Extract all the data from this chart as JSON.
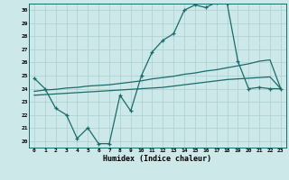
{
  "xlabel": "Humidex (Indice chaleur)",
  "bg_color": "#cce8e8",
  "grid_color": "#aacfcf",
  "line_color": "#1a6b6b",
  "xlim": [
    -0.5,
    23.5
  ],
  "ylim": [
    19.5,
    30.5
  ],
  "xticks": [
    0,
    1,
    2,
    3,
    4,
    5,
    6,
    7,
    8,
    9,
    10,
    11,
    12,
    13,
    14,
    15,
    16,
    17,
    18,
    19,
    20,
    21,
    22,
    23
  ],
  "yticks": [
    20,
    21,
    22,
    23,
    24,
    25,
    26,
    27,
    28,
    29,
    30
  ],
  "lines": [
    {
      "x": [
        0,
        1,
        2,
        3,
        4,
        5,
        6,
        7,
        8,
        9,
        10,
        11,
        12,
        13,
        14,
        15,
        16,
        17,
        18,
        19,
        20,
        21,
        22,
        23
      ],
      "y": [
        24.8,
        24.0,
        22.5,
        22.0,
        20.2,
        21.0,
        19.8,
        19.8,
        23.5,
        22.3,
        25.0,
        26.8,
        27.7,
        28.2,
        30.0,
        30.4,
        30.2,
        30.6,
        30.5,
        26.1,
        24.0,
        24.1,
        24.0,
        24.0
      ],
      "marker": "+",
      "markersize": 3.5
    },
    {
      "x": [
        0,
        1,
        2,
        3,
        4,
        5,
        6,
        7,
        8,
        9,
        10,
        11,
        12,
        13,
        14,
        15,
        16,
        17,
        18,
        19,
        20,
        21,
        22,
        23
      ],
      "y": [
        23.8,
        23.9,
        23.95,
        24.05,
        24.1,
        24.2,
        24.25,
        24.3,
        24.4,
        24.5,
        24.6,
        24.75,
        24.85,
        24.95,
        25.1,
        25.2,
        25.35,
        25.45,
        25.6,
        25.75,
        25.9,
        26.1,
        26.2,
        24.0
      ],
      "marker": null,
      "markersize": 0
    },
    {
      "x": [
        0,
        1,
        2,
        3,
        4,
        5,
        6,
        7,
        8,
        9,
        10,
        11,
        12,
        13,
        14,
        15,
        16,
        17,
        18,
        19,
        20,
        21,
        22,
        23
      ],
      "y": [
        23.5,
        23.55,
        23.6,
        23.65,
        23.7,
        23.75,
        23.8,
        23.85,
        23.9,
        23.95,
        24.0,
        24.05,
        24.1,
        24.2,
        24.3,
        24.4,
        24.5,
        24.6,
        24.7,
        24.75,
        24.8,
        24.85,
        24.9,
        24.0
      ],
      "marker": null,
      "markersize": 0
    }
  ],
  "linewidth": 0.9
}
